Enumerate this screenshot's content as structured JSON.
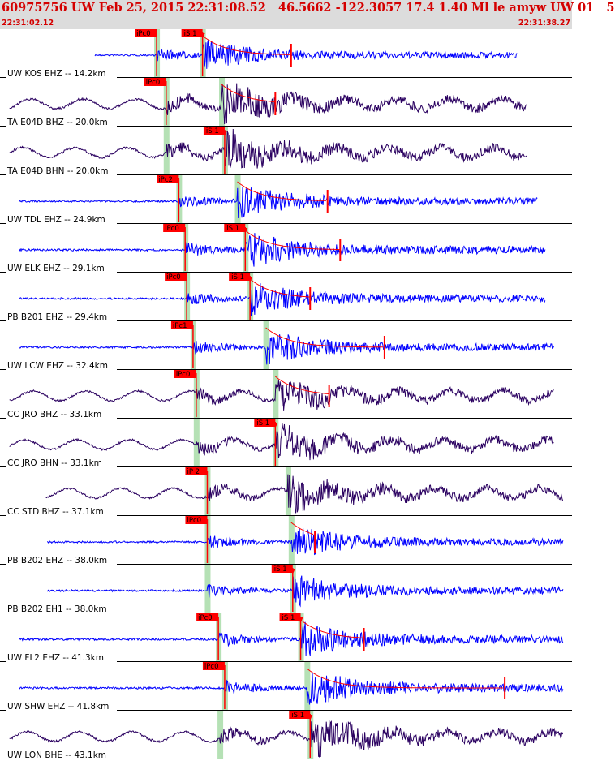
{
  "header": {
    "title": "60975756 UW Feb 25, 2015 22:31:08.52   46.5662 -122.3057 17.4 1.40 Ml le amyw UW 01   5",
    "start_time": "22:31:02.12",
    "end_time": "22:31:38.27"
  },
  "colors": {
    "header_bg": "#dcdcdc",
    "header_text": "#d40000",
    "trace_blue": "#0000ff",
    "trace_dark": "#2a0060",
    "pick": "#ff0000",
    "window": "#a8dca8"
  },
  "chart_data": {
    "type": "seismogram",
    "x_unit": "seconds",
    "xlim": [
      0,
      36.15
    ],
    "traces": [
      {
        "label": "UW KOS EHZ -- 14.2km",
        "color": "blue",
        "start": 6.0,
        "end": 32.7,
        "p_pick": "iPc0",
        "p_time": 9.9,
        "s_pick": "iS 1",
        "s_time": 12.8,
        "end_mark": 18.4,
        "amp": 0.45
      },
      {
        "label": "TA E04D BHZ -- 20.0km",
        "color": "dark",
        "start": 0.6,
        "end": 33.3,
        "p_pick": "iPc0",
        "p_time": 10.5,
        "s_pick": "",
        "s_time": 14.0,
        "end_mark": 17.4,
        "amp": 0.6
      },
      {
        "label": "TA E04D BHN -- 20.0km",
        "color": "dark",
        "start": 0.6,
        "end": 33.3,
        "p_pick": "",
        "p_time": 10.5,
        "s_pick": "iS 1",
        "s_time": 14.2,
        "end_mark": 0,
        "amp": 0.6
      },
      {
        "label": "UW TDL EHZ -- 24.9km",
        "color": "blue",
        "start": 1.2,
        "end": 34.0,
        "p_pick": "iPc2",
        "p_time": 11.3,
        "s_pick": "",
        "s_time": 15.0,
        "end_mark": 20.7,
        "amp": 0.5
      },
      {
        "label": "UW ELK EHZ -- 29.1km",
        "color": "blue",
        "start": 1.2,
        "end": 34.5,
        "p_pick": "iPc0",
        "p_time": 11.7,
        "s_pick": "iS 1",
        "s_time": 15.5,
        "end_mark": 21.5,
        "amp": 0.55
      },
      {
        "label": "PB B201 EHZ -- 29.4km",
        "color": "blue",
        "start": 1.2,
        "end": 34.5,
        "p_pick": "iPc0",
        "p_time": 11.8,
        "s_pick": "iS 1",
        "s_time": 15.8,
        "end_mark": 19.6,
        "amp": 0.5
      },
      {
        "label": "UW LCW EHZ -- 32.4km",
        "color": "blue",
        "start": 1.2,
        "end": 35.0,
        "p_pick": "iPc1",
        "p_time": 12.2,
        "s_pick": "",
        "s_time": 16.8,
        "end_mark": 24.3,
        "amp": 0.5
      },
      {
        "label": "CC JRO BHZ -- 33.1km",
        "color": "dark",
        "start": 0.6,
        "end": 35.0,
        "p_pick": "iPc0",
        "p_time": 12.4,
        "s_pick": "",
        "s_time": 17.4,
        "end_mark": 20.8,
        "amp": 0.5
      },
      {
        "label": "CC JRO BHN -- 33.1km",
        "color": "dark",
        "start": 0.6,
        "end": 35.0,
        "p_pick": "",
        "p_time": 12.4,
        "s_pick": "iS 1",
        "s_time": 17.4,
        "end_mark": 0,
        "amp": 0.55
      },
      {
        "label": "CC STD BHZ -- 37.1km",
        "color": "dark",
        "start": 2.9,
        "end": 35.6,
        "p_pick": "iP 2",
        "p_time": 13.1,
        "s_pick": "",
        "s_time": 18.2,
        "end_mark": 0,
        "amp": 0.55
      },
      {
        "label": "PB B202 EHZ -- 38.0km",
        "color": "blue",
        "start": 3.0,
        "end": 35.6,
        "p_pick": "iPc0",
        "p_time": 13.1,
        "s_pick": "",
        "s_time": 18.4,
        "end_mark": 19.9,
        "amp": 0.5
      },
      {
        "label": "PB B202 EH1 -- 38.0km",
        "color": "blue",
        "start": 3.0,
        "end": 35.6,
        "p_pick": "",
        "p_time": 13.1,
        "s_pick": "iS 1",
        "s_time": 18.5,
        "end_mark": 0,
        "amp": 0.5
      },
      {
        "label": "UW FL2 EHZ -- 41.3km",
        "color": "blue",
        "start": 1.2,
        "end": 35.6,
        "p_pick": "iPc0",
        "p_time": 13.8,
        "s_pick": "iS 1",
        "s_time": 19.0,
        "end_mark": 23.0,
        "amp": 0.55
      },
      {
        "label": "UW SHW EHZ -- 41.8km",
        "color": "blue",
        "start": 1.2,
        "end": 35.6,
        "p_pick": "iPc0",
        "p_time": 14.2,
        "s_pick": "",
        "s_time": 19.4,
        "end_mark": 31.9,
        "amp": 0.55
      },
      {
        "label": "UW LON BHE -- 43.1km",
        "color": "dark",
        "start": 0.6,
        "end": 35.6,
        "p_pick": "",
        "p_time": 13.9,
        "s_pick": "iS 1",
        "s_time": 19.6,
        "end_mark": 0,
        "amp": 0.6
      }
    ]
  }
}
